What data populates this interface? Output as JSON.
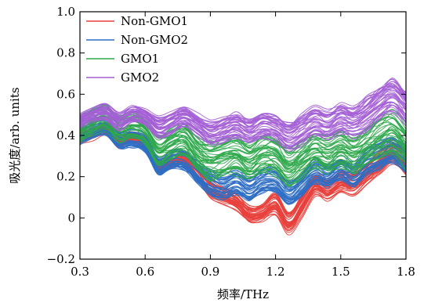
{
  "chart_data": {
    "type": "line",
    "xlabel": "频率/THz",
    "ylabel": "吸光度/arb. units",
    "xlim": [
      0.3,
      1.8
    ],
    "ylim": [
      -0.2,
      1.0
    ],
    "x_ticks": [
      "0.3",
      "0.6",
      "0.9",
      "1.2",
      "1.5",
      "1.8"
    ],
    "y_ticks": [
      "−0.2",
      "0",
      "0.2",
      "0.4",
      "0.6",
      "0.8",
      "1.0"
    ],
    "grid": false,
    "legend_position": "top-left",
    "x": [
      0.3,
      0.36,
      0.42,
      0.48,
      0.54,
      0.6,
      0.66,
      0.72,
      0.78,
      0.84,
      0.9,
      0.96,
      1.02,
      1.08,
      1.14,
      1.2,
      1.26,
      1.32,
      1.38,
      1.44,
      1.5,
      1.56,
      1.62,
      1.68,
      1.74,
      1.8
    ],
    "series": [
      {
        "name": "Non-GMO1",
        "color": "#e8403c",
        "center": [
          0.39,
          0.41,
          0.43,
          0.37,
          0.39,
          0.36,
          0.25,
          0.27,
          0.28,
          0.22,
          0.14,
          0.11,
          0.08,
          0.02,
          0.03,
          0.07,
          -0.02,
          0.06,
          0.16,
          0.14,
          0.18,
          0.17,
          0.22,
          0.27,
          0.32,
          0.27
        ],
        "spread": [
          0.03,
          0.03,
          0.03,
          0.03,
          0.03,
          0.03,
          0.03,
          0.03,
          0.03,
          0.04,
          0.04,
          0.04,
          0.04,
          0.04,
          0.04,
          0.05,
          0.05,
          0.05,
          0.05,
          0.05,
          0.05,
          0.05,
          0.05,
          0.05,
          0.05,
          0.05
        ]
      },
      {
        "name": "Non-GMO2",
        "color": "#2f6ec4",
        "center": [
          0.4,
          0.43,
          0.44,
          0.38,
          0.38,
          0.36,
          0.25,
          0.28,
          0.28,
          0.22,
          0.17,
          0.15,
          0.17,
          0.14,
          0.18,
          0.18,
          0.12,
          0.16,
          0.22,
          0.2,
          0.24,
          0.21,
          0.27,
          0.3,
          0.33,
          0.28
        ],
        "spread": [
          0.04,
          0.04,
          0.04,
          0.04,
          0.04,
          0.04,
          0.04,
          0.04,
          0.05,
          0.05,
          0.06,
          0.06,
          0.06,
          0.06,
          0.06,
          0.06,
          0.06,
          0.06,
          0.06,
          0.06,
          0.06,
          0.06,
          0.07,
          0.07,
          0.07,
          0.07
        ]
      },
      {
        "name": "GMO1",
        "color": "#2ea84a",
        "center": [
          0.43,
          0.47,
          0.49,
          0.43,
          0.45,
          0.42,
          0.33,
          0.36,
          0.38,
          0.31,
          0.27,
          0.29,
          0.3,
          0.27,
          0.31,
          0.3,
          0.24,
          0.28,
          0.33,
          0.3,
          0.33,
          0.3,
          0.34,
          0.38,
          0.4,
          0.34
        ],
        "spread": [
          0.06,
          0.06,
          0.06,
          0.06,
          0.06,
          0.06,
          0.07,
          0.07,
          0.08,
          0.08,
          0.09,
          0.09,
          0.09,
          0.09,
          0.09,
          0.09,
          0.09,
          0.09,
          0.09,
          0.09,
          0.09,
          0.09,
          0.09,
          0.1,
          0.1,
          0.1
        ]
      },
      {
        "name": "GMO2",
        "color": "#a45fd6",
        "center": [
          0.47,
          0.5,
          0.51,
          0.47,
          0.5,
          0.49,
          0.44,
          0.46,
          0.49,
          0.45,
          0.41,
          0.43,
          0.45,
          0.42,
          0.45,
          0.44,
          0.4,
          0.43,
          0.47,
          0.45,
          0.49,
          0.47,
          0.51,
          0.56,
          0.6,
          0.54
        ],
        "spread": [
          0.03,
          0.03,
          0.04,
          0.04,
          0.04,
          0.04,
          0.05,
          0.05,
          0.05,
          0.05,
          0.06,
          0.06,
          0.06,
          0.06,
          0.06,
          0.06,
          0.07,
          0.07,
          0.07,
          0.07,
          0.07,
          0.08,
          0.08,
          0.08,
          0.08,
          0.08
        ]
      }
    ],
    "curves_per_series": 40
  }
}
